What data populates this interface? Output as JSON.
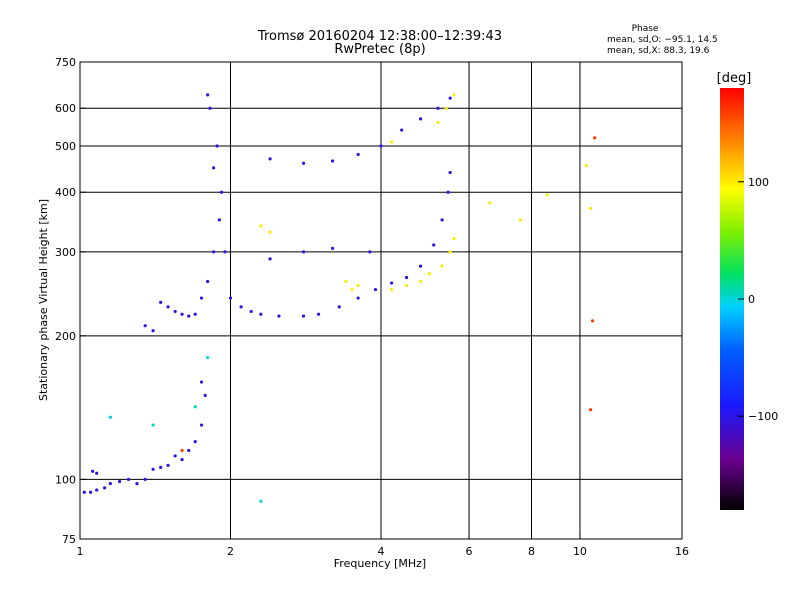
{
  "chart_data": {
    "type": "scatter",
    "title": "Tromsø 20160204 12:38:00–12:39:43",
    "subtitle": "RwPretec (8p)",
    "xlabel": "Frequency [MHz]",
    "ylabel": "Stationary phase Virtual Height [km]",
    "x_scale": "log",
    "y_scale": "log",
    "xlim": [
      1,
      16
    ],
    "ylim": [
      75,
      750
    ],
    "x_ticks": [
      1,
      2,
      4,
      6,
      8,
      10,
      16
    ],
    "x_tick_labels": [
      "1",
      "2",
      "4",
      "6",
      "8",
      "10",
      "16"
    ],
    "x_grid": [
      2,
      4,
      6,
      8,
      10
    ],
    "y_ticks": [
      75,
      100,
      200,
      300,
      400,
      500,
      600,
      750
    ],
    "y_tick_labels": [
      "75",
      "100",
      "200",
      "300",
      "400",
      "500",
      "600",
      "750"
    ],
    "y_grid": [
      100,
      200,
      300,
      400,
      500,
      600
    ],
    "grid": true,
    "stats": {
      "heading": "Phase",
      "line_o": "mean, sd,O: −95.1, 14.5",
      "line_x": "mean, sd,X:  88.3, 19.6"
    },
    "colorbar": {
      "label": "[deg]",
      "range": [
        -180,
        180
      ],
      "ticks": [
        100,
        0,
        -100
      ],
      "tick_labels": [
        "100",
        "0",
        "−100"
      ],
      "placement": "right"
    },
    "series": [
      {
        "phase": -100,
        "points": [
          [
            1.02,
            94
          ],
          [
            1.05,
            94
          ],
          [
            1.08,
            95
          ],
          [
            1.12,
            96
          ],
          [
            1.06,
            104
          ],
          [
            1.08,
            103
          ],
          [
            1.15,
            98
          ],
          [
            1.2,
            99
          ],
          [
            1.25,
            100
          ],
          [
            1.3,
            98
          ],
          [
            1.35,
            100
          ],
          [
            1.4,
            105
          ],
          [
            1.45,
            106
          ],
          [
            1.5,
            107
          ],
          [
            1.55,
            112
          ],
          [
            1.6,
            110
          ],
          [
            1.65,
            115
          ],
          [
            1.7,
            120
          ],
          [
            1.75,
            130
          ],
          [
            1.78,
            150
          ],
          [
            1.75,
            160
          ],
          [
            1.35,
            210
          ],
          [
            1.4,
            205
          ],
          [
            1.45,
            235
          ],
          [
            1.5,
            230
          ],
          [
            1.55,
            225
          ],
          [
            1.6,
            222
          ],
          [
            1.65,
            220
          ],
          [
            1.7,
            222
          ],
          [
            1.75,
            240
          ],
          [
            1.8,
            260
          ],
          [
            1.85,
            300
          ],
          [
            1.9,
            350
          ],
          [
            1.92,
            400
          ],
          [
            1.85,
            450
          ],
          [
            1.88,
            500
          ],
          [
            1.82,
            600
          ],
          [
            1.8,
            640
          ],
          [
            1.95,
            300
          ],
          [
            2.0,
            240
          ],
          [
            2.1,
            230
          ],
          [
            2.2,
            225
          ],
          [
            2.3,
            222
          ],
          [
            2.5,
            220
          ],
          [
            2.8,
            220
          ],
          [
            3.0,
            222
          ],
          [
            3.3,
            230
          ],
          [
            3.6,
            240
          ],
          [
            3.9,
            250
          ],
          [
            4.2,
            258
          ],
          [
            4.5,
            265
          ],
          [
            4.8,
            280
          ],
          [
            5.1,
            310
          ],
          [
            5.3,
            350
          ],
          [
            5.45,
            400
          ],
          [
            5.5,
            440
          ],
          [
            2.4,
            290
          ],
          [
            2.8,
            300
          ],
          [
            3.2,
            305
          ],
          [
            3.8,
            300
          ],
          [
            2.4,
            470
          ],
          [
            2.8,
            460
          ],
          [
            3.2,
            465
          ],
          [
            3.6,
            480
          ],
          [
            4.0,
            500
          ],
          [
            4.4,
            540
          ],
          [
            4.8,
            570
          ],
          [
            5.2,
            600
          ],
          [
            5.5,
            630
          ]
        ]
      },
      {
        "phase": 100,
        "points": [
          [
            2.3,
            340
          ],
          [
            2.4,
            330
          ],
          [
            3.4,
            260
          ],
          [
            3.5,
            250
          ],
          [
            3.6,
            255
          ],
          [
            4.2,
            250
          ],
          [
            4.5,
            255
          ],
          [
            4.8,
            260
          ],
          [
            5.0,
            270
          ],
          [
            5.3,
            280
          ],
          [
            5.5,
            300
          ],
          [
            5.6,
            320
          ],
          [
            5.2,
            560
          ],
          [
            5.4,
            600
          ],
          [
            5.6,
            640
          ],
          [
            4.2,
            510
          ],
          [
            6.6,
            380
          ],
          [
            8.6,
            395
          ],
          [
            10.3,
            455
          ],
          [
            10.5,
            370
          ],
          [
            7.6,
            350
          ]
        ]
      },
      {
        "phase": 0,
        "points": [
          [
            1.15,
            135
          ],
          [
            1.4,
            130
          ],
          [
            1.7,
            142
          ],
          [
            2.3,
            90
          ],
          [
            1.8,
            180
          ]
        ]
      },
      {
        "phase": 160,
        "points": [
          [
            10.7,
            520
          ],
          [
            10.6,
            215
          ],
          [
            10.5,
            140
          ],
          [
            1.6,
            115
          ]
        ]
      }
    ]
  }
}
